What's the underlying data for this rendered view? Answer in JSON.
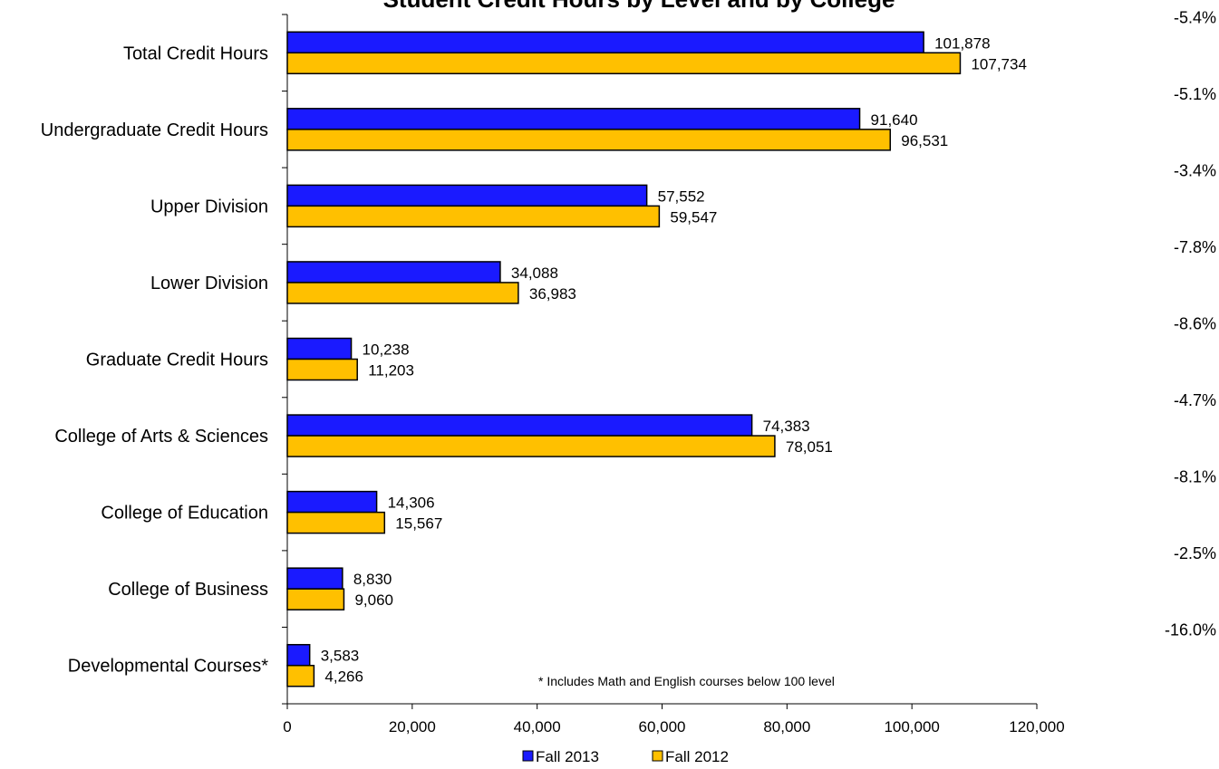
{
  "chart_data": {
    "type": "bar",
    "orientation": "horizontal",
    "title": "Student Credit Hours by Level and by College",
    "categories": [
      "Total Credit Hours",
      "Undergraduate Credit Hours",
      "Upper Division",
      "Lower Division",
      "Graduate Credit Hours",
      "College of Arts & Sciences",
      "College of Education",
      "College of Business",
      "Developmental Courses*"
    ],
    "series": [
      {
        "name": "Fall 2013",
        "color": "#1a1aff",
        "values": [
          101878,
          91640,
          57552,
          34088,
          10238,
          74383,
          14306,
          8830,
          3583
        ],
        "labels": [
          "101,878",
          "91,640",
          "57,552",
          "34,088",
          "10,238",
          "74,383",
          "14,306",
          "8,830",
          "3,583"
        ]
      },
      {
        "name": "Fall 2012",
        "color": "#ffc000",
        "values": [
          107734,
          96531,
          59547,
          36983,
          11203,
          78051,
          15567,
          9060,
          4266
        ],
        "labels": [
          "107,734",
          "96,531",
          "59,547",
          "36,983",
          "11,203",
          "78,051",
          "15,567",
          "9,060",
          "4,266"
        ]
      }
    ],
    "percent_change": [
      "-5.4%",
      "-5.1%",
      "-3.4%",
      "-7.8%",
      "-8.6%",
      "-4.7%",
      "-8.1%",
      "-2.5%",
      "-16.0%"
    ],
    "xlim": [
      0,
      120000
    ],
    "xticks": [
      0,
      20000,
      40000,
      60000,
      80000,
      100000,
      120000
    ],
    "xtick_labels": [
      "0",
      "20,000",
      "40,000",
      "60,000",
      "80,000",
      "100,000",
      "120,000"
    ],
    "xlabel": "",
    "ylabel": "",
    "grid": false,
    "legend_position": "bottom",
    "annotation": "* Includes Math and English courses below 100 level"
  }
}
